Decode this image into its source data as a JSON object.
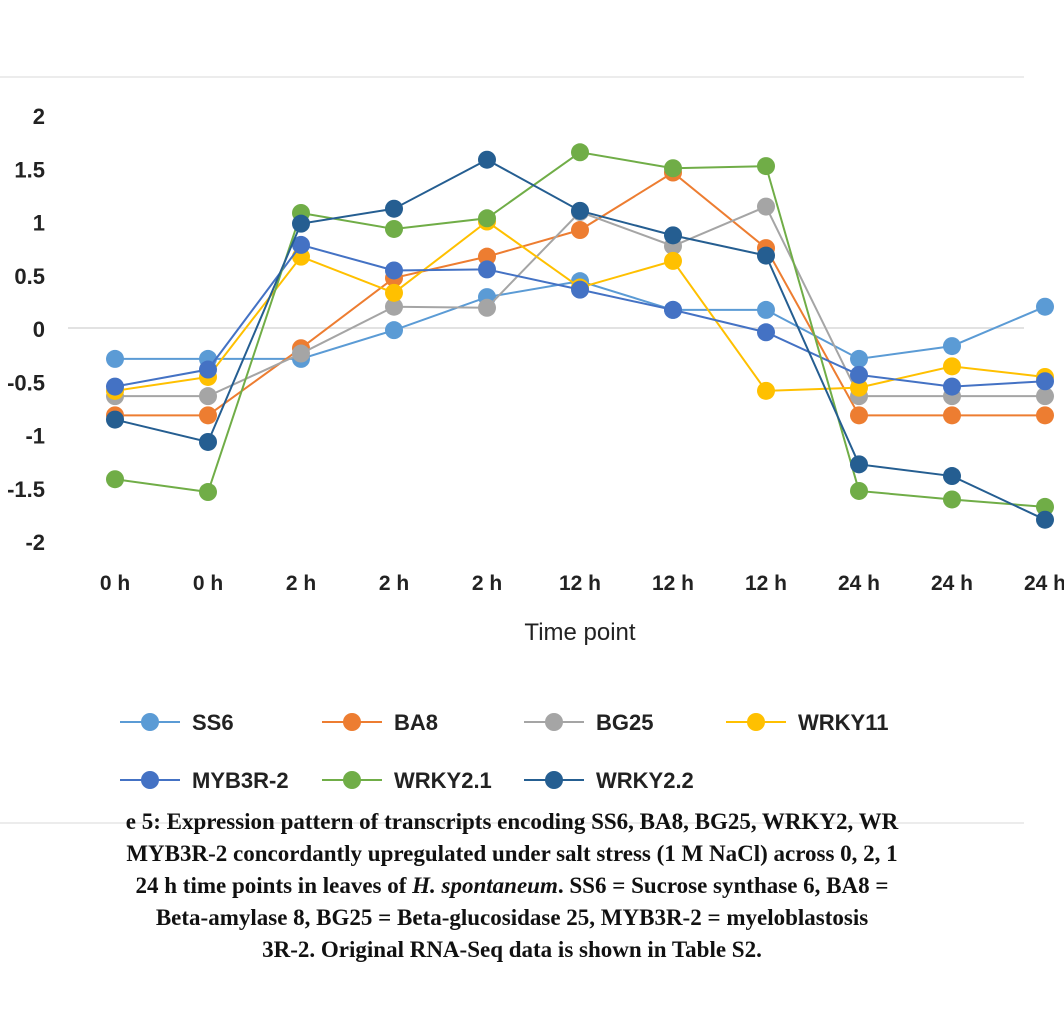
{
  "chart_data": {
    "type": "line",
    "xlabel": "Time point",
    "ylabel": "",
    "ylim": [
      -2,
      2
    ],
    "yticks": [
      "-2",
      "-1.5",
      "-1",
      "-0.5",
      "0",
      "0.5",
      "1",
      "1.5",
      "2"
    ],
    "yticks_values": [
      -2,
      -1.5,
      -1,
      -0.5,
      0,
      0.5,
      1,
      1.5,
      2
    ],
    "categories": [
      "0 h",
      "0 h",
      "2 h",
      "2 h",
      "2 h",
      "12 h",
      "12 h",
      "12 h",
      "24 h",
      "24 h",
      "24 h"
    ],
    "grid": "horizontal zero line",
    "legend_position": "bottom",
    "series": [
      {
        "name": "SS6",
        "color": "#5B9BD5",
        "values": [
          -0.29,
          -0.29,
          -0.29,
          -0.02,
          0.29,
          0.44,
          0.17,
          0.17,
          -0.29,
          -0.17,
          0.2
        ]
      },
      {
        "name": "BA8",
        "color": "#ED7D31",
        "values": [
          -0.82,
          -0.82,
          -0.19,
          0.47,
          0.67,
          0.92,
          1.46,
          0.75,
          -0.82,
          -0.82,
          -0.82
        ]
      },
      {
        "name": "BG25",
        "color": "#A5A5A5",
        "values": [
          -0.64,
          -0.64,
          -0.24,
          0.2,
          0.19,
          1.09,
          0.77,
          1.14,
          -0.64,
          -0.64,
          -0.64
        ]
      },
      {
        "name": "WRKY11",
        "color": "#FFC000",
        "values": [
          -0.59,
          -0.46,
          0.67,
          0.33,
          1.0,
          0.38,
          0.63,
          -0.59,
          -0.56,
          -0.36,
          -0.46
        ]
      },
      {
        "name": "MYB3R-2",
        "color": "#4472C4",
        "values": [
          -0.55,
          -0.39,
          0.78,
          0.54,
          0.55,
          0.36,
          0.17,
          -0.04,
          -0.44,
          -0.55,
          -0.5
        ]
      },
      {
        "name": "WRKY2.1",
        "color": "#70AD47",
        "values": [
          -1.42,
          -1.54,
          1.08,
          0.93,
          1.03,
          1.65,
          1.5,
          1.52,
          -1.53,
          -1.61,
          -1.68
        ]
      },
      {
        "name": "WRKY2.2",
        "color": "#255E91",
        "values": [
          -0.86,
          -1.07,
          0.98,
          1.12,
          1.58,
          1.1,
          0.87,
          0.68,
          -1.28,
          -1.39,
          -1.8
        ]
      }
    ]
  },
  "caption": {
    "line1": "e 5: Expression pattern of transcripts encoding SS6, BA8, BG25, WRKY2, WR",
    "line2": "MYB3R-2 concordantly upregulated under salt stress (1 M NaCl) across 0, 2, 1",
    "line3_a": "24 h time points in leaves of ",
    "line3_species": "H. spontaneum",
    "line3_b": ". SS6 = Sucrose synthase 6, BA8 = ",
    "line4": "Beta-amylase 8, BG25 = Beta-glucosidase 25, MYB3R-2  = myeloblastosis",
    "line5": "3R-2. Original RNA-Seq data is shown in Table S2."
  }
}
